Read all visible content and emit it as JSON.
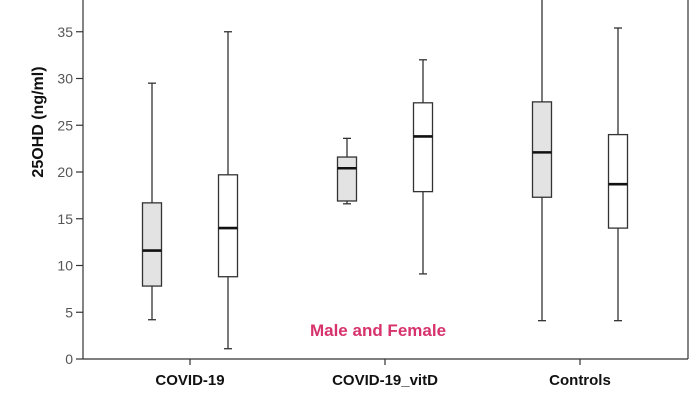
{
  "chart_data": {
    "type": "boxplot",
    "ylabel": "25OHD (ng/ml)",
    "xlabel": "",
    "ylim": [
      0,
      38.5
    ],
    "yticks": [
      0,
      5,
      10,
      15,
      20,
      25,
      30,
      35
    ],
    "categories": [
      "COVID-19",
      "COVID-19_vitD",
      "Controls"
    ],
    "series": [
      {
        "name": "Male",
        "fill": "#e3e3e3",
        "boxes": [
          {
            "category": "COVID-19",
            "min": 4.2,
            "q1": 7.8,
            "median": 11.6,
            "q3": 16.7,
            "max": 29.5
          },
          {
            "category": "COVID-19_vitD",
            "min": 16.6,
            "q1": 16.9,
            "median": 20.4,
            "q3": 21.6,
            "max": 23.6
          },
          {
            "category": "Controls",
            "min": 4.1,
            "q1": 17.3,
            "median": 22.1,
            "q3": 27.5,
            "max": 38.5
          }
        ]
      },
      {
        "name": "Female",
        "fill": "#ffffff",
        "boxes": [
          {
            "category": "COVID-19",
            "min": 1.1,
            "q1": 8.8,
            "median": 14.0,
            "q3": 19.7,
            "max": 35.0
          },
          {
            "category": "COVID-19_vitD",
            "min": 9.1,
            "q1": 17.9,
            "median": 23.8,
            "q3": 27.4,
            "max": 32.0
          },
          {
            "category": "Controls",
            "min": 4.1,
            "q1": 14.0,
            "median": 18.7,
            "q3": 24.0,
            "max": 35.4
          }
        ]
      }
    ],
    "annotation": {
      "text": "Male and Female",
      "color": "#d6336c"
    }
  }
}
